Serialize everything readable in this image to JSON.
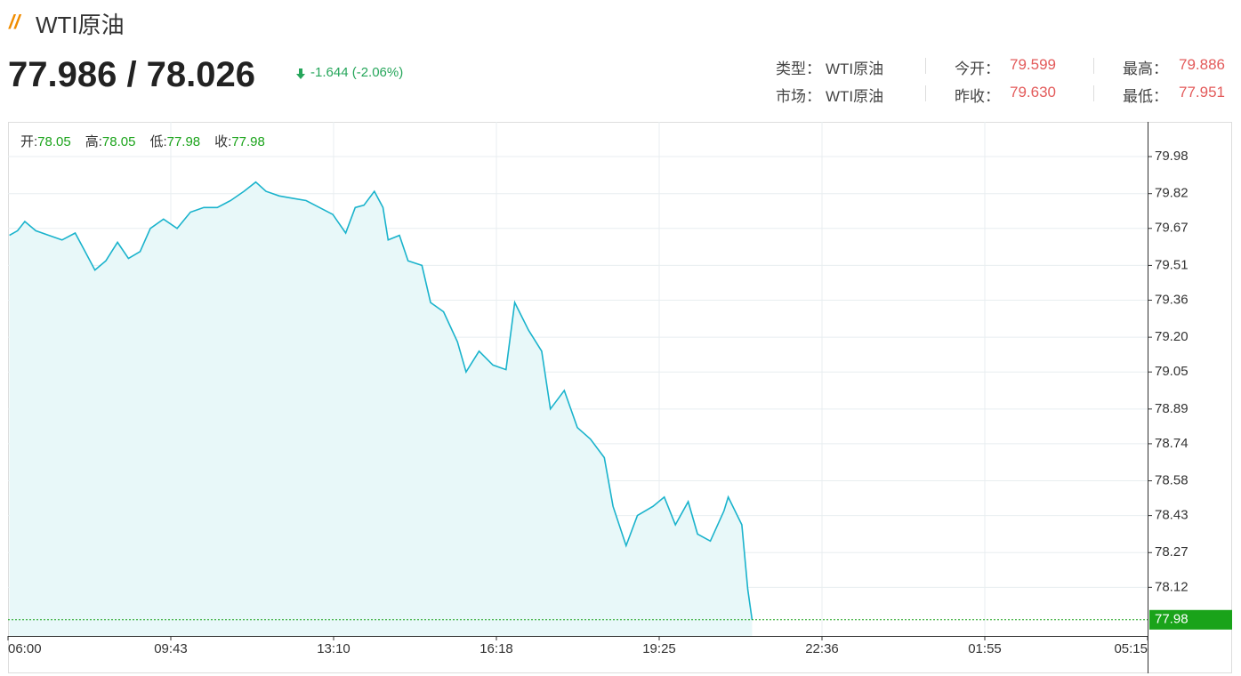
{
  "header": {
    "title": "WTI原油",
    "price": "77.986 / 78.026",
    "change": "-1.644 (-2.06%)",
    "info": [
      {
        "label": "类型：",
        "value": "WTI原油"
      },
      {
        "label": "今开：",
        "value": "79.599"
      },
      {
        "label": "最高：",
        "value": "79.886"
      },
      {
        "label": "市场：",
        "value": "WTI原油"
      },
      {
        "label": "昨收：",
        "value": "79.630"
      },
      {
        "label": "最低：",
        "value": "77.951"
      }
    ]
  },
  "chart_data": {
    "type": "line",
    "fill": true,
    "color": "#1ab3cc",
    "area_color": "#e8f8f9",
    "grid": true,
    "ohlc": [
      {
        "label": "开:",
        "value": "78.05"
      },
      {
        "label": "高:",
        "value": "78.05"
      },
      {
        "label": "低:",
        "value": "77.98"
      },
      {
        "label": "收:",
        "value": "77.98"
      }
    ],
    "x": [
      "06:02",
      "06:13",
      "06:23",
      "06:38",
      "06:56",
      "07:14",
      "07:32",
      "07:44",
      "07:59",
      "08:14",
      "08:30",
      "08:45",
      "09:01",
      "09:15",
      "09:33",
      "09:51",
      "10:08",
      "10:25",
      "10:42",
      "10:59",
      "11:16",
      "11:31",
      "11:44",
      "12:01",
      "12:18",
      "12:35",
      "12:52",
      "13:09",
      "13:24",
      "13:35",
      "13:45",
      "13:57",
      "14:07",
      "14:13",
      "14:26",
      "14:36",
      "14:52",
      "15:02",
      "15:17",
      "15:33",
      "15:43",
      "15:58",
      "16:14",
      "16:29",
      "16:39",
      "16:55",
      "17:10",
      "17:20",
      "17:36",
      "17:51",
      "18:06",
      "18:22",
      "18:32",
      "18:47",
      "19:00",
      "19:18",
      "19:31",
      "19:44",
      "19:59",
      "20:10",
      "20:25",
      "20:41",
      "20:46",
      "21:02",
      "21:09",
      "21:14"
    ],
    "values": [
      79.64,
      79.66,
      79.7,
      79.66,
      79.64,
      79.62,
      79.65,
      79.58,
      79.49,
      79.53,
      79.61,
      79.54,
      79.57,
      79.67,
      79.71,
      79.67,
      79.74,
      79.76,
      79.76,
      79.79,
      79.83,
      79.87,
      79.83,
      79.81,
      79.8,
      79.79,
      79.76,
      79.73,
      79.65,
      79.76,
      79.77,
      79.83,
      79.76,
      79.62,
      79.64,
      79.53,
      79.51,
      79.35,
      79.31,
      79.18,
      79.05,
      79.14,
      79.08,
      79.06,
      79.35,
      79.23,
      79.14,
      78.89,
      78.97,
      78.81,
      78.76,
      78.68,
      78.47,
      78.3,
      78.43,
      78.47,
      78.51,
      78.39,
      78.49,
      78.35,
      78.32,
      78.45,
      78.51,
      78.39,
      78.11,
      77.98
    ],
    "last_price": 77.98,
    "last_price_color": "#1aa31a",
    "xticks": [
      "06:00",
      "09:43",
      "13:10",
      "16:18",
      "19:25",
      "22:36",
      "01:55",
      "05:15"
    ],
    "ylim": [
      77.91,
      80.13
    ],
    "yticks": [
      79.98,
      79.82,
      79.67,
      79.51,
      79.36,
      {
        "value": 79.2,
        "label": "79.20"
      },
      79.05,
      78.89,
      78.74,
      78.58,
      78.43,
      78.27,
      78.12
    ]
  }
}
